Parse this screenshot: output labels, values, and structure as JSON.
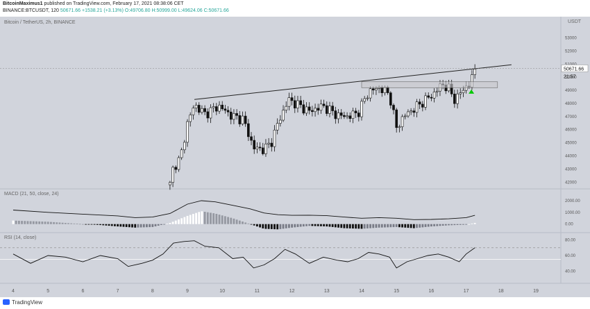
{
  "header": {
    "author": "BitcoinMaximus1",
    "published": "published on TradingView.com, February 17, 2021 08:38:06 CET",
    "symbol": "BINANCE:BTCUSDT, 120",
    "last": "50671.66",
    "change": "+1538.21 (+3.13%)",
    "ohlc": "O:49706.80 H:50999.00 L:49624.06 C:50671.66"
  },
  "chart_title": "Bitcoin / TetherUS, 2h, BINANCE",
  "price_axis_unit": "USDT",
  "price_tag": "50671.66",
  "countdown": "21:57",
  "macd_label": "MACD (21, 50, close, 24)",
  "rsi_label": "RSI (14, close)",
  "footer_logo": "TradingView",
  "colors": {
    "panel_bg": "#d1d4dc",
    "accent": "#2962ff",
    "up": "#26a69a",
    "signal": "#00c800"
  },
  "chart_data": [
    {
      "type": "candlestick",
      "title": "Bitcoin / TetherUS, 2h, BINANCE",
      "x_tick_labels": [
        "4",
        "5",
        "6",
        "7",
        "8",
        "9",
        "10",
        "11",
        "12",
        "13",
        "14",
        "15",
        "16",
        "17",
        "18",
        "19"
      ],
      "y_ticks": [
        42000,
        43000,
        44000,
        45000,
        46000,
        47000,
        48000,
        49000,
        50000,
        51000,
        52000,
        53000
      ],
      "ylim": [
        41700,
        54400
      ],
      "last_price": 50671.66,
      "resistance_line": {
        "from": [
          "9.2",
          48300
        ],
        "to": [
          "18.3",
          50950
        ]
      },
      "support_zone": [
        49200,
        49650
      ],
      "signal_arrow": {
        "x": "17.15",
        "y": 48900,
        "direction": "up"
      },
      "approx_close_path": [
        [
          "8.5",
          41800
        ],
        [
          "8.6",
          43200
        ],
        [
          "8.8",
          43800
        ],
        [
          "9.0",
          46500
        ],
        [
          "9.2",
          47900
        ],
        [
          "9.5",
          47200
        ],
        [
          "9.9",
          47800
        ],
        [
          "10.3",
          47000
        ],
        [
          "10.6",
          46800
        ],
        [
          "10.9",
          44600
        ],
        [
          "11.2",
          44500
        ],
        [
          "11.4",
          45000
        ],
        [
          "11.6",
          46500
        ],
        [
          "11.9",
          48300
        ],
        [
          "12.1",
          48000
        ],
        [
          "12.5",
          47400
        ],
        [
          "12.9",
          47800
        ],
        [
          "13.3",
          47100
        ],
        [
          "13.6",
          47000
        ],
        [
          "13.9",
          47300
        ],
        [
          "14.2",
          48900
        ],
        [
          "14.5",
          49200
        ],
        [
          "14.8",
          48700
        ],
        [
          "15.0",
          46100
        ],
        [
          "15.2",
          47000
        ],
        [
          "15.5",
          47600
        ],
        [
          "15.8",
          48200
        ],
        [
          "16.1",
          48800
        ],
        [
          "16.3",
          49500
        ],
        [
          "16.5",
          49100
        ],
        [
          "16.7",
          48200
        ],
        [
          "16.9",
          49100
        ],
        [
          "17.1",
          49400
        ],
        [
          "17.25",
          50671.66
        ]
      ]
    },
    {
      "type": "macd",
      "title": "MACD (21, 50, close, 24)",
      "y_ticks": [
        0,
        1000,
        2000
      ],
      "ylim": [
        -550,
        2650
      ],
      "macd_line": [
        [
          "4",
          1200
        ],
        [
          "5",
          1000
        ],
        [
          "6",
          850
        ],
        [
          "7",
          700
        ],
        [
          "7.5",
          550
        ],
        [
          "8",
          600
        ],
        [
          "8.5",
          900
        ],
        [
          "9",
          1700
        ],
        [
          "9.4",
          2000
        ],
        [
          "9.8",
          1900
        ],
        [
          "10.3",
          1600
        ],
        [
          "10.8",
          1300
        ],
        [
          "11.2",
          950
        ],
        [
          "11.6",
          800
        ],
        [
          "12",
          750
        ],
        [
          "12.5",
          760
        ],
        [
          "13",
          720
        ],
        [
          "13.5",
          600
        ],
        [
          "14",
          500
        ],
        [
          "14.5",
          550
        ],
        [
          "15",
          500
        ],
        [
          "15.5",
          380
        ],
        [
          "16",
          400
        ],
        [
          "16.5",
          450
        ],
        [
          "17",
          550
        ],
        [
          "17.25",
          750
        ]
      ],
      "histogram": [
        [
          "4",
          300
        ],
        [
          "4.5",
          250
        ],
        [
          "5",
          200
        ],
        [
          "5.5",
          100
        ],
        [
          "6",
          0
        ],
        [
          "6.5",
          -80
        ],
        [
          "7",
          -200
        ],
        [
          "7.5",
          -300
        ],
        [
          "8",
          -250
        ],
        [
          "8.5",
          100
        ],
        [
          "9",
          700
        ],
        [
          "9.4",
          1100
        ],
        [
          "9.8",
          900
        ],
        [
          "10.3",
          500
        ],
        [
          "10.8",
          0
        ],
        [
          "11.2",
          -400
        ],
        [
          "11.6",
          -450
        ],
        [
          "12",
          -300
        ],
        [
          "12.5",
          -150
        ],
        [
          "13",
          -200
        ],
        [
          "13.5",
          -350
        ],
        [
          "14",
          -400
        ],
        [
          "14.5",
          -300
        ],
        [
          "15",
          -250
        ],
        [
          "15.5",
          -350
        ],
        [
          "16",
          -200
        ],
        [
          "16.5",
          -100
        ],
        [
          "17",
          -50
        ],
        [
          "17.25",
          100
        ]
      ]
    },
    {
      "type": "line",
      "title": "RSI (14, close)",
      "y_ticks": [
        40,
        60,
        80
      ],
      "ylim": [
        27,
        85
      ],
      "bands": [
        70,
        55
      ],
      "series": [
        {
          "values": [
            [
              "4",
              62
            ],
            [
              "4.5",
              50
            ],
            [
              "5",
              60
            ],
            [
              "5.5",
              58
            ],
            [
              "6",
              52
            ],
            [
              "6.5",
              60
            ],
            [
              "7",
              56
            ],
            [
              "7.3",
              46
            ],
            [
              "7.7",
              50
            ],
            [
              "8",
              54
            ],
            [
              "8.3",
              62
            ],
            [
              "8.6",
              76
            ],
            [
              "8.9",
              78
            ],
            [
              "9.2",
              79
            ],
            [
              "9.5",
              72
            ],
            [
              "9.9",
              70
            ],
            [
              "10.3",
              56
            ],
            [
              "10.6",
              58
            ],
            [
              "10.9",
              44
            ],
            [
              "11.2",
              48
            ],
            [
              "11.5",
              56
            ],
            [
              "11.8",
              68
            ],
            [
              "12.1",
              62
            ],
            [
              "12.5",
              50
            ],
            [
              "12.9",
              58
            ],
            [
              "13.3",
              54
            ],
            [
              "13.6",
              52
            ],
            [
              "13.9",
              56
            ],
            [
              "14.2",
              64
            ],
            [
              "14.5",
              62
            ],
            [
              "14.8",
              58
            ],
            [
              "15.0",
              44
            ],
            [
              "15.3",
              52
            ],
            [
              "15.6",
              56
            ],
            [
              "15.9",
              60
            ],
            [
              "16.2",
              62
            ],
            [
              "16.5",
              58
            ],
            [
              "16.8",
              52
            ],
            [
              "17.0",
              62
            ],
            [
              "17.25",
              70
            ]
          ]
        }
      ]
    }
  ]
}
